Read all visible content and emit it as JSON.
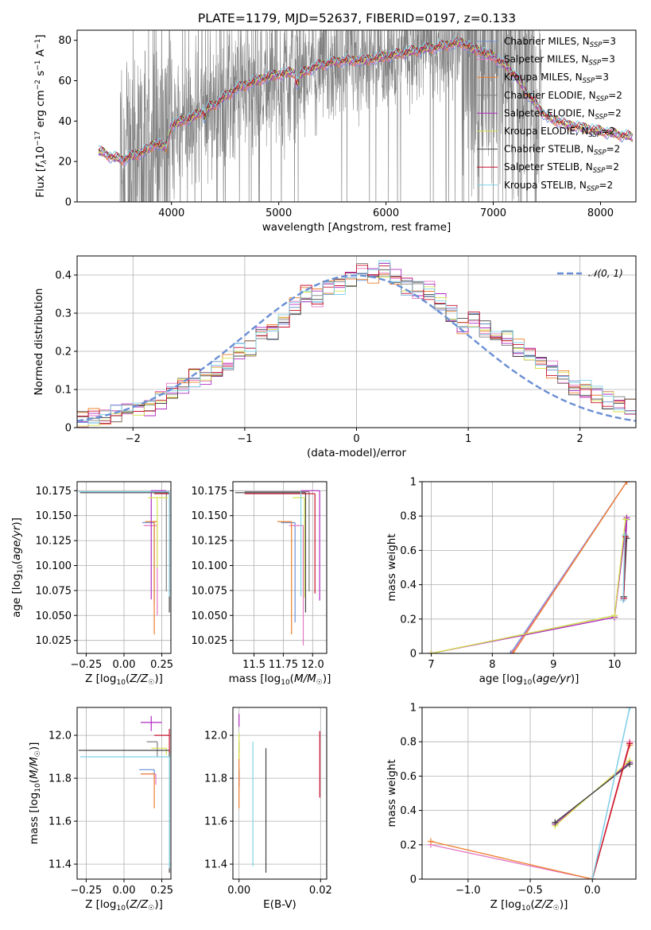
{
  "figure": {
    "title": "PLATE=1179, MJD=52637, FIBERID=0197, z=0.133"
  },
  "series_colors": [
    "#6a8fd4",
    "#e377c2",
    "#ee7f2a",
    "#7f7f7f",
    "#b02cc0",
    "#d7e24a",
    "#444444",
    "#c8102e",
    "#7fd3e8"
  ],
  "chart_data": [
    {
      "id": "spectrum",
      "type": "line",
      "xlabel": "wavelength [Angstrom, rest frame]",
      "ylabel": "Flux [f_λ 10^-17 erg cm^-2 s^-1 A^-1]",
      "xlim": [
        3120,
        8330
      ],
      "ylim": [
        0,
        85
      ],
      "xticks": [
        4000,
        5000,
        6000,
        7000,
        8000
      ],
      "yticks": [
        0,
        20,
        40,
        60,
        80
      ],
      "legend_position": "top-right",
      "legend": [
        {
          "name": "Chabrier MILES, N",
          "sub": "SSP",
          "suffix": "=3"
        },
        {
          "name": "Salpeter MILES, N",
          "sub": "SSP",
          "suffix": "=3"
        },
        {
          "name": "Kroupa MILES, N",
          "sub": "SSP",
          "suffix": "=3"
        },
        {
          "name": "Chabrier ELODIE, N",
          "sub": "SSP",
          "suffix": "=2"
        },
        {
          "name": "Salpeter ELODIE, N",
          "sub": "SSP",
          "suffix": "=2"
        },
        {
          "name": "Kroupa ELODIE, N",
          "sub": "SSP",
          "suffix": "=2"
        },
        {
          "name": "Chabrier STELIB, N",
          "sub": "SSP",
          "suffix": "=2"
        },
        {
          "name": "Salpeter STELIB, N",
          "sub": "SSP",
          "suffix": "=2"
        },
        {
          "name": "Kroupa STELIB, N",
          "sub": "SSP",
          "suffix": "=2"
        }
      ],
      "model_continuum": {
        "x": [
          3320,
          3380,
          3450,
          3550,
          3650,
          3750,
          3850,
          3950,
          4000,
          4100,
          4200,
          4300,
          4400,
          4500,
          4600,
          4700,
          4800,
          4900,
          5000,
          5100,
          5200,
          5300,
          5400,
          5500,
          5600,
          5700,
          5800,
          5900,
          6000,
          6100,
          6200,
          6300,
          6400,
          6500,
          6600,
          6700,
          6800,
          6900,
          7000,
          7100,
          7200,
          7300,
          7400,
          7500,
          7600,
          7700,
          7800,
          7900,
          8000,
          8100,
          8200,
          8300
        ],
        "y": [
          25,
          24,
          22,
          21,
          23,
          25,
          29,
          27,
          38,
          40,
          42,
          45,
          48,
          52,
          56,
          58,
          60,
          62,
          63,
          64,
          63,
          66,
          68,
          69,
          70,
          70,
          70,
          71,
          72,
          73,
          74,
          75,
          76,
          77,
          78,
          79,
          76,
          74,
          72,
          68,
          63,
          55,
          48,
          42,
          40,
          38,
          37,
          36,
          35,
          34,
          33,
          32
        ]
      },
      "observed": {
        "wavelength_min": 3520,
        "wavelength_max": 7450,
        "color": "#808080"
      }
    },
    {
      "id": "residuals",
      "type": "histogram",
      "xlabel": "(data-model)/error",
      "ylabel": "Normed distribution",
      "xlim": [
        -2.5,
        2.5
      ],
      "ylim": [
        0,
        0.45
      ],
      "xticks": [
        -2,
        -1,
        0,
        1,
        2
      ],
      "yticks": [
        0.0,
        0.1,
        0.2,
        0.3,
        0.4
      ],
      "grid": true,
      "reference_curve": {
        "label": "𝒩(0, 1)",
        "mean": 0,
        "sigma": 1,
        "color": "#6a8fd4",
        "style": "dashed"
      },
      "bins": [
        -2.5,
        -2.4,
        -2.3,
        -2.2,
        -2.1,
        -2.0,
        -1.9,
        -1.8,
        -1.7,
        -1.6,
        -1.5,
        -1.4,
        -1.3,
        -1.2,
        -1.1,
        -1.0,
        -0.9,
        -0.8,
        -0.7,
        -0.6,
        -0.5,
        -0.4,
        -0.3,
        -0.2,
        -0.1,
        0.0,
        0.1,
        0.2,
        0.3,
        0.4,
        0.5,
        0.6,
        0.7,
        0.8,
        0.9,
        1.0,
        1.1,
        1.2,
        1.3,
        1.4,
        1.5,
        1.6,
        1.7,
        1.8,
        1.9,
        2.0,
        2.1,
        2.2,
        2.3,
        2.4,
        2.5
      ],
      "base_density": [
        0.025,
        0.03,
        0.03,
        0.035,
        0.04,
        0.045,
        0.055,
        0.07,
        0.1,
        0.105,
        0.13,
        0.13,
        0.15,
        0.17,
        0.2,
        0.21,
        0.24,
        0.25,
        0.28,
        0.32,
        0.35,
        0.34,
        0.36,
        0.37,
        0.39,
        0.41,
        0.4,
        0.42,
        0.39,
        0.37,
        0.36,
        0.36,
        0.33,
        0.3,
        0.27,
        0.28,
        0.26,
        0.25,
        0.23,
        0.21,
        0.19,
        0.17,
        0.15,
        0.13,
        0.11,
        0.1,
        0.09,
        0.07,
        0.06,
        0.05
      ]
    },
    {
      "id": "age_vs_Z",
      "type": "errorbar",
      "xlabel": "Z [log10(Z/Z☉)]",
      "ylabel": "age  [log10(age/yr)]",
      "xlim": [
        -0.31,
        0.31
      ],
      "ylim": [
        10.012,
        10.184
      ],
      "xticks": [
        -0.25,
        0.0,
        0.25
      ],
      "xticklabels": [
        "−0.25",
        "0.00",
        "0.25"
      ],
      "yticks": [
        10.025,
        10.05,
        10.075,
        10.1,
        10.125,
        10.15,
        10.175
      ],
      "yticklabels": [
        "10.025",
        "10.050",
        "10.075",
        "10.100",
        "10.125",
        "10.150",
        "10.175"
      ],
      "grid": true,
      "points": [
        {
          "x": 0.2,
          "y": 10.143,
          "xerr": [
            0.08,
            0.0
          ],
          "yerr": [
            0.08,
            0.0
          ]
        },
        {
          "x": 0.22,
          "y": 10.14,
          "xerr": [
            0.09,
            0.0
          ],
          "yerr": [
            0.09,
            0.0
          ]
        },
        {
          "x": 0.2,
          "y": 10.144,
          "xerr": [
            0.06,
            0.02
          ],
          "yerr": [
            0.113,
            0.0
          ]
        },
        {
          "x": 0.28,
          "y": 10.174,
          "xerr": [
            0.58,
            0.0
          ],
          "yerr": [
            0.1,
            0.0
          ]
        },
        {
          "x": 0.18,
          "y": 10.175,
          "xerr": [
            0.0,
            0.1
          ],
          "yerr": [
            0.109,
            0.0
          ]
        },
        {
          "x": 0.22,
          "y": 10.168,
          "xerr": [
            0.06,
            0.07
          ],
          "yerr": [
            0.07,
            0.0
          ]
        },
        {
          "x": 0.3,
          "y": 10.173,
          "xerr": [
            0.59,
            0.0
          ],
          "yerr": [
            0.12,
            0.0
          ]
        },
        {
          "x": 0.3,
          "y": 10.172,
          "xerr": [
            0.1,
            0.0
          ],
          "yerr": [
            0.1,
            0.0
          ]
        },
        {
          "x": 0.3,
          "y": 10.174,
          "xerr": [
            0.6,
            0.0
          ],
          "yerr": [
            0.105,
            0.0
          ]
        }
      ]
    },
    {
      "id": "age_vs_mass",
      "type": "errorbar",
      "xlabel": "mass [log10(M/M☉)]",
      "ylabel": "",
      "xlim": [
        11.32,
        12.12
      ],
      "ylim": [
        10.012,
        10.184
      ],
      "xticks": [
        11.5,
        11.75,
        12.0
      ],
      "xticklabels": [
        "11.5",
        "11.75",
        "12.0"
      ],
      "yticks": [
        10.025,
        10.05,
        10.075,
        10.1,
        10.125,
        10.15,
        10.175
      ],
      "yticklabels": [
        "10.025",
        "10.050",
        "10.075",
        "10.100",
        "10.125",
        "10.150",
        "10.175"
      ],
      "grid": true,
      "points": [
        {
          "x": 11.85,
          "y": 10.143,
          "xerr": [
            0.12,
            0.0
          ],
          "yerr": [
            0.1,
            0.0
          ]
        },
        {
          "x": 11.92,
          "y": 10.14,
          "xerr": [
            0.12,
            0.0
          ],
          "yerr": [
            0.12,
            0.0
          ]
        },
        {
          "x": 11.82,
          "y": 10.144,
          "xerr": [
            0.12,
            0.0
          ],
          "yerr": [
            0.113,
            0.0
          ]
        },
        {
          "x": 11.97,
          "y": 10.174,
          "xerr": [
            0.55,
            0.0
          ],
          "yerr": [
            0.1,
            0.0
          ]
        },
        {
          "x": 12.06,
          "y": 10.175,
          "xerr": [
            0.16,
            0.0
          ],
          "yerr": [
            0.11,
            0.0
          ]
        },
        {
          "x": 11.93,
          "y": 10.168,
          "xerr": [
            0.1,
            0.0
          ],
          "yerr": [
            0.1,
            0.0
          ]
        },
        {
          "x": 11.94,
          "y": 10.173,
          "xerr": [
            0.6,
            0.0
          ],
          "yerr": [
            0.12,
            0.0
          ]
        },
        {
          "x": 12.02,
          "y": 10.172,
          "xerr": [
            0.6,
            0.0
          ],
          "yerr": [
            0.1,
            0.0
          ]
        },
        {
          "x": 11.9,
          "y": 10.174,
          "xerr": [
            0.0,
            0.0
          ],
          "yerr": [
            0.105,
            0.0
          ]
        }
      ]
    },
    {
      "id": "weight_vs_age",
      "type": "line",
      "xlabel": "age  [log10(age/yr)]",
      "ylabel": "mass weight",
      "xlim": [
        6.85,
        10.35
      ],
      "ylim": [
        0,
        1.0
      ],
      "xticks": [
        7,
        8,
        9,
        10
      ],
      "yticks": [
        0.0,
        0.2,
        0.4,
        0.6,
        0.8,
        1.0
      ],
      "grid": true,
      "series": [
        {
          "x": [
            8.3,
            10.2
          ],
          "y": [
            0.0,
            1.0
          ]
        },
        {
          "x": [
            8.32,
            10.2
          ],
          "y": [
            0.0,
            1.0
          ]
        },
        {
          "x": [
            8.34,
            10.2
          ],
          "y": [
            0.0,
            1.0
          ]
        },
        {
          "x": [
            7.0,
            10.0,
            10.2,
            10.15
          ],
          "y": [
            0.0,
            0.22,
            0.78,
            0.33
          ]
        },
        {
          "x": [
            7.0,
            10.0,
            10.2,
            10.15
          ],
          "y": [
            0.0,
            0.21,
            0.79,
            0.32
          ]
        },
        {
          "x": [
            7.0,
            10.0,
            10.18
          ],
          "y": [
            0.0,
            0.22,
            0.78
          ]
        },
        {
          "x": [
            10.15,
            10.2
          ],
          "y": [
            0.33,
            0.67
          ]
        },
        {
          "x": [
            10.15,
            10.18
          ],
          "y": [
            0.32,
            0.68
          ]
        },
        {
          "x": [
            10.14,
            10.17
          ],
          "y": [
            0.31,
            0.69
          ]
        }
      ]
    },
    {
      "id": "mass_vs_Z",
      "type": "errorbar",
      "xlabel": "Z [log10(Z/Z☉)]",
      "ylabel": "mass [log10(M/M☉)]",
      "xlim": [
        -0.31,
        0.31
      ],
      "ylim": [
        11.33,
        12.13
      ],
      "xticks": [
        -0.25,
        0.0,
        0.25
      ],
      "xticklabels": [
        "−0.25",
        "0.00",
        "0.25"
      ],
      "yticks": [
        11.4,
        11.6,
        11.8,
        12.0
      ],
      "yticklabels": [
        "11.4",
        "11.6",
        "11.8",
        "12.0"
      ],
      "grid": true,
      "points": [
        {
          "x": 0.2,
          "y": 11.84,
          "xerr": [
            0.1,
            0.0
          ],
          "yerr": [
            0.04,
            0.0
          ]
        },
        {
          "x": 0.21,
          "y": 11.82,
          "xerr": [
            0.1,
            0.0
          ],
          "yerr": [
            0.05,
            0.0
          ]
        },
        {
          "x": 0.2,
          "y": 11.82,
          "xerr": [
            0.09,
            0.0
          ],
          "yerr": [
            0.16,
            0.0
          ]
        },
        {
          "x": 0.22,
          "y": 11.97,
          "xerr": [
            0.07,
            0.0
          ],
          "yerr": [
            0.07,
            0.0
          ]
        },
        {
          "x": 0.18,
          "y": 12.06,
          "xerr": [
            0.07,
            0.07
          ],
          "yerr": [
            0.04,
            0.03
          ]
        },
        {
          "x": 0.28,
          "y": 11.94,
          "xerr": [
            0.1,
            0.0
          ],
          "yerr": [
            0.03,
            0.0
          ]
        },
        {
          "x": 0.3,
          "y": 11.93,
          "xerr": [
            0.6,
            0.0
          ],
          "yerr": [
            0.57,
            0.0
          ]
        },
        {
          "x": 0.3,
          "y": 12.0,
          "xerr": [
            0.1,
            0.0
          ],
          "yerr": [
            0.08,
            0.03
          ]
        },
        {
          "x": 0.3,
          "y": 11.9,
          "xerr": [
            0.59,
            0.0
          ],
          "yerr": [
            0.52,
            0.0
          ]
        }
      ]
    },
    {
      "id": "mass_vs_ebv",
      "type": "errorbar",
      "xlabel": "E(B-V)",
      "ylabel": "",
      "xlim": [
        -0.0015,
        0.0215
      ],
      "ylim": [
        11.33,
        12.13
      ],
      "xticks": [
        0.0,
        0.02
      ],
      "xticklabels": [
        "0.00",
        "0.02"
      ],
      "yticks": [
        11.4,
        11.6,
        11.8,
        12.0
      ],
      "yticklabels": [
        "11.4",
        "11.6",
        "11.8",
        "12.0"
      ],
      "grid": true,
      "points": [
        {
          "x": 0.0,
          "y": 11.84,
          "yerr": [
            0.08,
            0.0
          ]
        },
        {
          "x": 0.0,
          "y": 11.82,
          "yerr": [
            0.06,
            0.0
          ]
        },
        {
          "x": 0.0,
          "y": 11.82,
          "yerr": [
            0.16,
            0.12
          ]
        },
        {
          "x": 0.0,
          "y": 11.97,
          "yerr": [
            0.05,
            0.0
          ]
        },
        {
          "x": 0.0,
          "y": 12.06,
          "yerr": [
            0.02,
            0.04
          ]
        },
        {
          "x": 0.0,
          "y": 11.94,
          "yerr": [
            0.05,
            0.07
          ]
        },
        {
          "x": 0.0066,
          "y": 11.94,
          "yerr": [
            0.58,
            0.0
          ]
        },
        {
          "x": 0.0198,
          "y": 12.01,
          "yerr": [
            0.3,
            0.01
          ]
        },
        {
          "x": 0.0034,
          "y": 11.97,
          "yerr": [
            0.58,
            0.0
          ]
        }
      ]
    },
    {
      "id": "weight_vs_Z",
      "type": "line",
      "xlabel": "Z [log10(Z/Z☉)]",
      "ylabel": "mass weight",
      "xlim": [
        -1.37,
        0.35
      ],
      "ylim": [
        0,
        1.0
      ],
      "xticks": [
        -1.0,
        -0.5,
        0.0
      ],
      "xticklabels": [
        "−1.0",
        "−0.5",
        "0.0"
      ],
      "yticks": [
        0.0,
        0.2,
        0.4,
        0.6,
        0.8,
        1.0
      ],
      "grid": true,
      "series": [
        {
          "x": [
            0.0,
            0.3
          ],
          "y": [
            0.0,
            1.0
          ]
        },
        {
          "x": [
            -1.3,
            0.0,
            0.3
          ],
          "y": [
            0.2,
            0.0,
            0.8
          ]
        },
        {
          "x": [
            -1.3,
            0.0,
            0.3
          ],
          "y": [
            0.22,
            0.0,
            0.78
          ]
        },
        {
          "x": [
            -0.3,
            0.3
          ],
          "y": [
            0.33,
            0.67
          ]
        },
        {
          "x": [
            -0.3,
            0.3
          ],
          "y": [
            0.32,
            0.68
          ]
        },
        {
          "x": [
            -0.3,
            0.3
          ],
          "y": [
            0.31,
            0.69
          ]
        },
        {
          "x": [
            -0.3,
            0.3
          ],
          "y": [
            0.33,
            0.67
          ]
        },
        {
          "x": [
            0.0,
            0.3
          ],
          "y": [
            0.0,
            0.79
          ]
        },
        {
          "x": [
            0.0,
            0.3
          ],
          "y": [
            0.0,
            1.0
          ]
        }
      ]
    }
  ]
}
